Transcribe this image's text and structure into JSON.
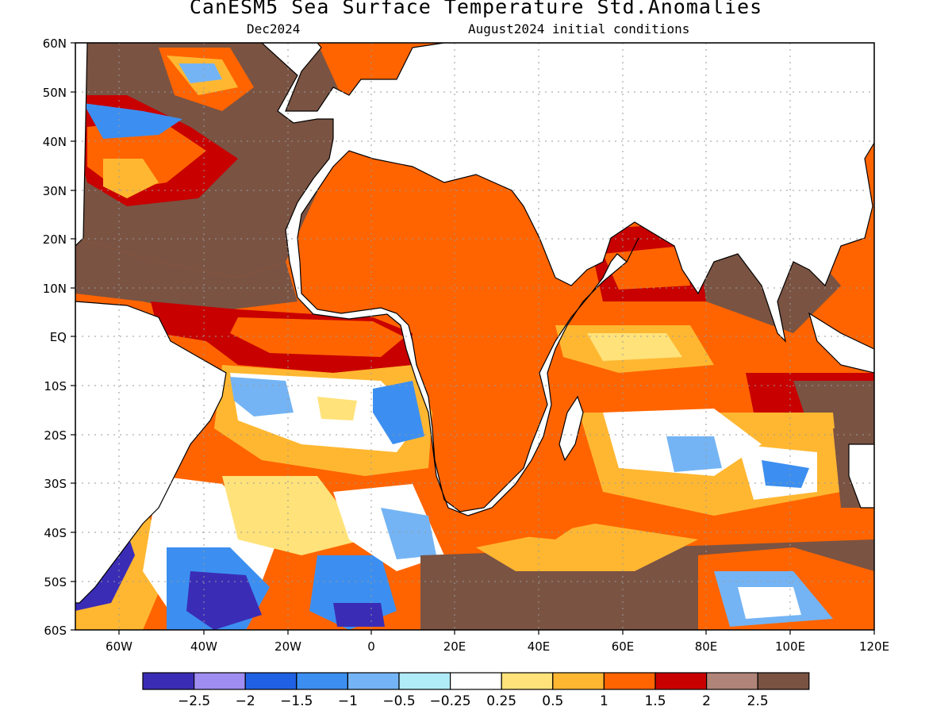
{
  "title": "CanESM5 Sea Surface Temperature Std.Anomalies",
  "forecast_month": "Dec2024",
  "initial_conditions": "August2024 initial conditions",
  "lat_labels": [
    "60N",
    "50N",
    "40N",
    "30N",
    "20N",
    "10N",
    "EQ",
    "10S",
    "20S",
    "30S",
    "40S",
    "50S",
    "60S"
  ],
  "lon_labels": [
    "60W",
    "40W",
    "20W",
    "0",
    "20E",
    "40E",
    "60E",
    "80E",
    "100E",
    "120E"
  ],
  "colorbar": {
    "colors": [
      "#3b2cb6",
      "#9f8df2",
      "#2060e2",
      "#3c8ff0",
      "#74b4f4",
      "#b0ecf8",
      "#ffffff",
      "#ffe27a",
      "#ffb731",
      "#ff6400",
      "#c80000",
      "#b08478",
      "#7a5343"
    ],
    "labels": [
      "−2.5",
      "−2",
      "−1.5",
      "−1",
      "−0.5",
      "−0.25",
      "0.25",
      "0.5",
      "1",
      "1.5",
      "2",
      "2.5"
    ]
  }
}
